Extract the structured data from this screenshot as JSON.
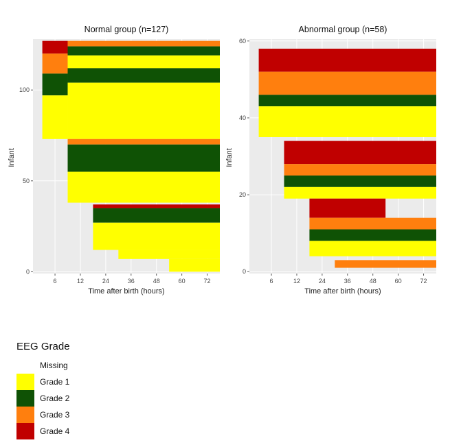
{
  "chart_data": [
    {
      "type": "heatmap",
      "title": "Normal group (n=127)",
      "xlabel": "Time after birth (hours)",
      "ylabel": "Infant",
      "x_ticks": [
        6,
        12,
        24,
        36,
        48,
        60,
        72
      ],
      "y_ticks": [
        0,
        50,
        100
      ],
      "ylim": [
        -1,
        128
      ],
      "grid": true,
      "cells": [
        {
          "y0": 120,
          "y1": 127,
          "x0": 0,
          "x1": 1,
          "grade": 4
        },
        {
          "y0": 109,
          "y1": 120,
          "x0": 0,
          "x1": 1,
          "grade": 3
        },
        {
          "y0": 97,
          "y1": 109,
          "x0": 0,
          "x1": 1,
          "grade": 2
        },
        {
          "y0": 73,
          "y1": 97,
          "x0": 0,
          "x1": 1,
          "grade": 1
        },
        {
          "y0": 124,
          "y1": 127,
          "x0": 1,
          "x1": 7,
          "grade": 3
        },
        {
          "y0": 119,
          "y1": 124,
          "x0": 1,
          "x1": 7,
          "grade": 2
        },
        {
          "y0": 112,
          "y1": 119,
          "x0": 1,
          "x1": 7,
          "grade": 1
        },
        {
          "y0": 104,
          "y1": 112,
          "x0": 1,
          "x1": 7,
          "grade": 2
        },
        {
          "y0": 73,
          "y1": 104,
          "x0": 1,
          "x1": 7,
          "grade": 1
        },
        {
          "y0": 70,
          "y1": 73,
          "x0": 1,
          "x1": 7,
          "grade": 3
        },
        {
          "y0": 55,
          "y1": 70,
          "x0": 1,
          "x1": 7,
          "grade": 2
        },
        {
          "y0": 38,
          "y1": 55,
          "x0": 1,
          "x1": 7,
          "grade": 1
        },
        {
          "y0": 35,
          "y1": 37,
          "x0": 2,
          "x1": 7,
          "grade": 4
        },
        {
          "y0": 27,
          "y1": 35,
          "x0": 2,
          "x1": 7,
          "grade": 2
        },
        {
          "y0": 12,
          "y1": 27,
          "x0": 2,
          "x1": 7,
          "grade": 1
        },
        {
          "y0": 7,
          "y1": 12,
          "x0": 3,
          "x1": 7,
          "grade": 1
        },
        {
          "y0": 0,
          "y1": 7,
          "x0": 5,
          "x1": 7,
          "grade": 1
        }
      ]
    },
    {
      "type": "heatmap",
      "title": "Abnormal group (n=58)",
      "xlabel": "Time after birth (hours)",
      "ylabel": "Infant",
      "x_ticks": [
        6,
        12,
        24,
        36,
        48,
        60,
        72
      ],
      "y_ticks": [
        0,
        20,
        40,
        60
      ],
      "ylim": [
        -0.5,
        60.5
      ],
      "grid": true,
      "cells": [
        {
          "y0": 52,
          "y1": 58,
          "x0": 0,
          "x1": 7,
          "grade": 4
        },
        {
          "y0": 46,
          "y1": 52,
          "x0": 0,
          "x1": 7,
          "grade": 3
        },
        {
          "y0": 43,
          "y1": 46,
          "x0": 0,
          "x1": 7,
          "grade": 2
        },
        {
          "y0": 35,
          "y1": 43,
          "x0": 0,
          "x1": 7,
          "grade": 1
        },
        {
          "y0": 28,
          "y1": 34,
          "x0": 1,
          "x1": 7,
          "grade": 4
        },
        {
          "y0": 25,
          "y1": 28,
          "x0": 1,
          "x1": 7,
          "grade": 3
        },
        {
          "y0": 22,
          "y1": 25,
          "x0": 1,
          "x1": 7,
          "grade": 2
        },
        {
          "y0": 19,
          "y1": 22,
          "x0": 1,
          "x1": 7,
          "grade": 1
        },
        {
          "y0": 14,
          "y1": 19,
          "x0": 2,
          "x1": 5,
          "grade": 4
        },
        {
          "y0": 11,
          "y1": 14,
          "x0": 2,
          "x1": 7,
          "grade": 3
        },
        {
          "y0": 8,
          "y1": 11,
          "x0": 2,
          "x1": 7,
          "grade": 2
        },
        {
          "y0": 4,
          "y1": 8,
          "x0": 2,
          "x1": 7,
          "grade": 1
        },
        {
          "y0": 1,
          "y1": 3,
          "x0": 3,
          "x1": 7,
          "grade": 3
        }
      ]
    }
  ],
  "legend": {
    "title": "EEG Grade",
    "items": [
      {
        "label": "Missing",
        "color": "#ffffff"
      },
      {
        "label": "Grade 1",
        "color": "#ffff00"
      },
      {
        "label": "Grade 2",
        "color": "#0f5205"
      },
      {
        "label": "Grade 3",
        "color": "#ff7f0e"
      },
      {
        "label": "Grade 4",
        "color": "#c00000"
      }
    ]
  },
  "colors": {
    "panel_bg": "#ebebeb",
    "grid": "#ffffff",
    "grade_1": "#ffff00",
    "grade_2": "#0f5205",
    "grade_3": "#ff7f0e",
    "grade_4": "#c00000"
  }
}
